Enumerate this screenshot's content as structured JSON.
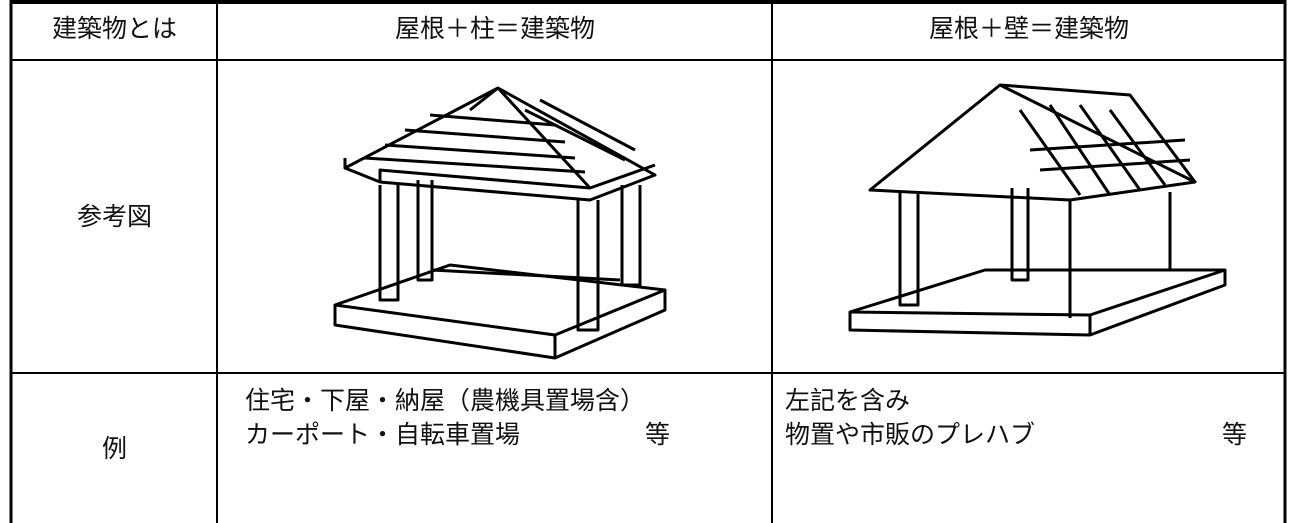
{
  "table": {
    "header": [
      "建築物とは",
      "屋根＋柱＝建築物",
      "屋根＋壁＝建築物"
    ],
    "figure_row": {
      "label": "参考図"
    },
    "example_row": {
      "label": "例",
      "left": {
        "lines": [
          "住宅・下屋・納屋（農機具置場含）",
          "カーポート・自転車置場"
        ],
        "suffix": "等"
      },
      "right": {
        "lines": [
          "左記を含み",
          "物置や市販のプレハブ"
        ],
        "suffix": "等"
      }
    }
  }
}
